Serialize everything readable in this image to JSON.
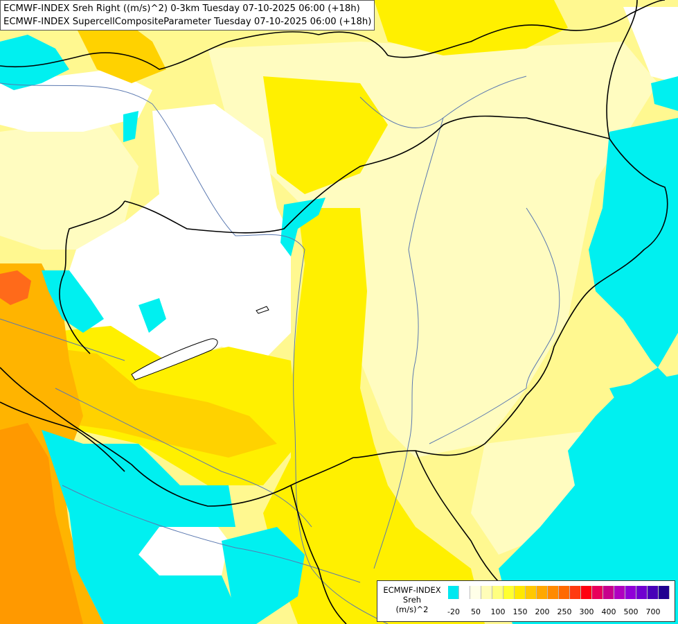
{
  "header": {
    "line1": "ECMWF-INDEX Sreh Right ((m/s)^2) 0-3km Tuesday 07-10-2025 06:00 (+18h)",
    "line2": "ECMWF-INDEX SupercellCompositeParameter Tuesday 07-10-2025 06:00 (+18h)"
  },
  "legend": {
    "title_line1": "ECMWF-INDEX",
    "title_line2": "Sreh",
    "title_line3": "(m/s)^2",
    "swatch_colors": [
      "#00e8f0",
      "#ffffff",
      "#ffffe8",
      "#fffdb8",
      "#ffff80",
      "#ffff30",
      "#ffe800",
      "#ffc800",
      "#ffa800",
      "#ff8a00",
      "#ff6a00",
      "#ff3a10",
      "#ff0010",
      "#e8005a",
      "#c8008c",
      "#b000c0",
      "#9000d8",
      "#7000d0",
      "#4800b8",
      "#200090"
    ],
    "ticks": [
      {
        "label": "-20",
        "at": 0.5
      },
      {
        "label": "50",
        "at": 2.5
      },
      {
        "label": "100",
        "at": 4.5
      },
      {
        "label": "150",
        "at": 6.5
      },
      {
        "label": "200",
        "at": 8.5
      },
      {
        "label": "250",
        "at": 10.5
      },
      {
        "label": "300",
        "at": 12.5
      },
      {
        "label": "400",
        "at": 14.5
      },
      {
        "label": "500",
        "at": 16.5
      },
      {
        "label": "700",
        "at": 18.5
      }
    ]
  },
  "colors": {
    "cyan": "#00f0f0",
    "white": "#ffffff",
    "pale_yellow": "#fffcc0",
    "light_yellow": "#fff890",
    "yellow": "#fff000",
    "gold": "#ffd200",
    "orange": "#ffb400",
    "dark_orange": "#ff9900",
    "red_orange": "#ff6a1a",
    "border": "#000000",
    "river": "#5a78b0"
  }
}
